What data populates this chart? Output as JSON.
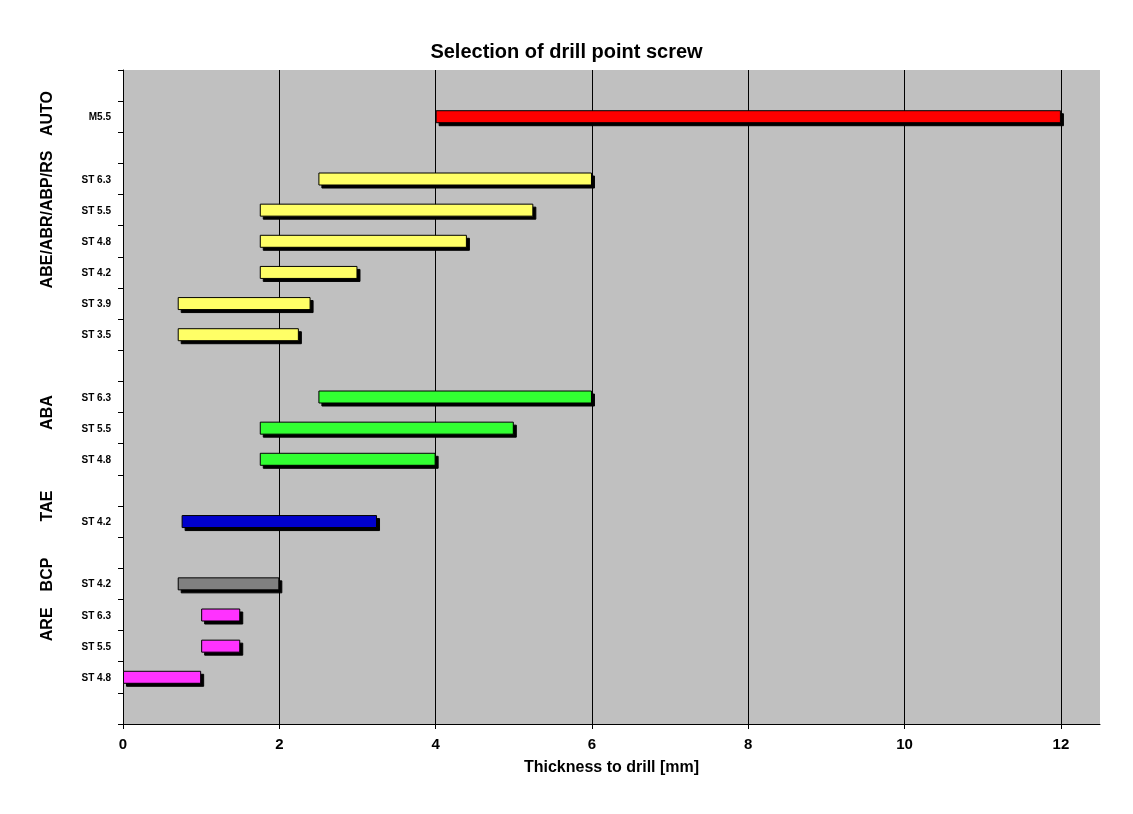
{
  "chart_data": {
    "type": "bar",
    "orientation": "horizontal",
    "title": "Selection of drill point screw",
    "xlabel": "Thickness to drill [mm]",
    "categories": [
      null,
      "M5.5",
      null,
      "ST 6.3",
      "ST 5.5",
      "ST 4.8",
      "ST 4.2",
      "ST 3.9",
      "ST 3.5",
      null,
      "ST 6.3",
      "ST 5.5",
      "ST 4.8",
      null,
      "ST 4.2",
      null,
      "ST 4.2",
      "ST 6.3",
      "ST 5.5",
      "ST 4.8",
      null
    ],
    "base": [
      null,
      4,
      null,
      2.5,
      1.75,
      1.75,
      1.75,
      0.7,
      0.7,
      null,
      2.5,
      1.75,
      1.75,
      null,
      0.75,
      null,
      0.7,
      1,
      1,
      0,
      null
    ],
    "values": [
      null,
      8,
      null,
      3.5,
      3.5,
      2.65,
      1.25,
      1.7,
      1.55,
      null,
      3.5,
      3.25,
      2.25,
      null,
      2.5,
      null,
      1.3,
      0.5,
      0.5,
      1,
      null
    ],
    "colors": [
      "#000000",
      "#ff0000",
      "#000000",
      "#ffff66",
      "#ffff66",
      "#ffff66",
      "#ffff66",
      "#ffff66",
      "#ffff66",
      "#000000",
      "#33ff33",
      "#33ff33",
      "#33ff33",
      "#000000",
      "#0000cc",
      "#000000",
      "#808080",
      "#ff33ff",
      "#ff33ff",
      "#ff33ff",
      "#000000"
    ],
    "annotations": [
      "AUTO",
      "ABE/ABR/ABP/RS",
      "ABA",
      "TAE",
      "BCP",
      "ARE"
    ],
    "xlim": [
      0,
      12.5
    ],
    "xticks": [
      0,
      2,
      4,
      6,
      8,
      10,
      12
    ],
    "grid": "x"
  }
}
